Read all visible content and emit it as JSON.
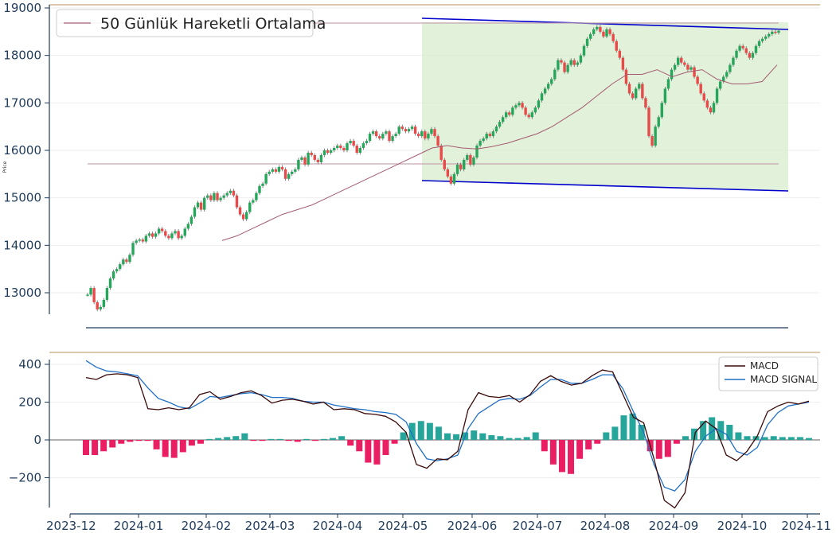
{
  "chart_data": [
    {
      "type": "candlestick",
      "ylabel": "Price",
      "ylim": [
        12500,
        19000
      ],
      "yticks": [
        "13000",
        "14000",
        "15000",
        "16000",
        "17000",
        "18000",
        "19000"
      ],
      "legend": {
        "entries": [
          "50 Günlük Hareketli Ortalama"
        ],
        "position": "top-left"
      },
      "colors": {
        "up": "#26a65b",
        "down": "#e84a4a",
        "ma": "#b07a8a",
        "channel": "#0000cc",
        "channel_fill": "#d8eccc",
        "reference": "#c9a67a"
      },
      "price_closes": [
        12960,
        13100,
        12800,
        12650,
        12700,
        12850,
        13100,
        13300,
        13450,
        13500,
        13600,
        13700,
        13650,
        13800,
        14050,
        14100,
        14120,
        14080,
        14200,
        14250,
        14180,
        14250,
        14350,
        14300,
        14200,
        14150,
        14250,
        14300,
        14150,
        14200,
        14350,
        14450,
        14600,
        14800,
        14900,
        14750,
        15000,
        15050,
        14950,
        15100,
        14950,
        15000,
        15050,
        15100,
        15150,
        15050,
        14800,
        14650,
        14550,
        14700,
        14900,
        14950,
        15100,
        15250,
        15300,
        15500,
        15550,
        15600,
        15550,
        15650,
        15600,
        15400,
        15500,
        15550,
        15600,
        15800,
        15850,
        15700,
        15950,
        15900,
        15800,
        15750,
        15900,
        16000,
        15950,
        16000,
        16050,
        16100,
        16050,
        16000,
        16150,
        16200,
        16100,
        15950,
        16050,
        16150,
        16200,
        16350,
        16400,
        16300,
        16250,
        16350,
        16400,
        16200,
        16300,
        16350,
        16500,
        16450,
        16400,
        16450,
        16500,
        16350,
        16300,
        16400,
        16250,
        16350,
        16450,
        16300,
        16100,
        15800,
        15600,
        15450,
        15300,
        15500,
        15700,
        15600,
        15800,
        15900,
        15700,
        15850,
        16100,
        16200,
        16250,
        16350,
        16300,
        16400,
        16500,
        16600,
        16700,
        16800,
        16750,
        16900,
        16950,
        17000,
        16900,
        16750,
        16700,
        16800,
        16900,
        17050,
        17200,
        17300,
        17400,
        17500,
        17700,
        17900,
        17850,
        17650,
        17800,
        17900,
        17800,
        17850,
        18000,
        18200,
        18350,
        18450,
        18550,
        18600,
        18500,
        18400,
        18550,
        18450,
        18300,
        18100,
        17950,
        17700,
        17400,
        17200,
        17100,
        17300,
        17400,
        17100,
        16900,
        16300,
        16100,
        16500,
        16700,
        17000,
        17300,
        17500,
        17700,
        17800,
        17950,
        17850,
        17800,
        17700,
        17750,
        17550,
        17400,
        17200,
        17050,
        16900,
        16800,
        17000,
        17300,
        17450,
        17550,
        17650,
        17800,
        17950,
        18100,
        18200,
        18150,
        18050,
        17950,
        18050,
        18200,
        18300,
        18350,
        18400,
        18450,
        18500,
        18480,
        18520
      ],
      "ma50": [
        14100,
        14200,
        14350,
        14500,
        14650,
        14750,
        14850,
        15000,
        15150,
        15300,
        15450,
        15600,
        15750,
        15900,
        16050,
        16100,
        16050,
        16030,
        16080,
        16150,
        16250,
        16350,
        16500,
        16700,
        16900,
        17150,
        17400,
        17600,
        17600,
        17700,
        17550,
        17650,
        17700,
        17500,
        17400,
        17400,
        17450,
        17800
      ],
      "panels": [
        {
          "name": "price",
          "ylabel": "Price",
          "yticks": [
            "13000",
            "14000",
            "15000",
            "16000",
            "17000",
            "18000",
            "19000"
          ]
        },
        {
          "name": "macd",
          "yticks": [
            "400",
            "200",
            "0",
            "−200"
          ]
        }
      ],
      "xticks": [
        "2023-12",
        "2024-01",
        "2024-02",
        "2024-03",
        "2024-04",
        "2024-05",
        "2024-06",
        "2024-07",
        "2024-08",
        "2024-09",
        "2024-10",
        "2024-11"
      ]
    },
    {
      "type": "line",
      "title": "",
      "ylim": [
        -370,
        430
      ],
      "legend": {
        "entries": [
          "MACD",
          "MACD SIGNAL"
        ],
        "position": "top-right"
      },
      "colors": {
        "macd": "#3b0a0a",
        "signal": "#1f6fc5",
        "hist_pos": "#26a69a",
        "hist_neg": "#e91e63",
        "zero": "#808080"
      },
      "series": [
        {
          "name": "MACD",
          "values": [
            330,
            320,
            345,
            350,
            345,
            330,
            165,
            160,
            170,
            160,
            170,
            240,
            255,
            215,
            230,
            250,
            260,
            235,
            195,
            210,
            215,
            205,
            190,
            200,
            160,
            165,
            160,
            140,
            135,
            125,
            95,
            40,
            -130,
            -150,
            -100,
            -105,
            -60,
            160,
            250,
            230,
            225,
            235,
            200,
            240,
            310,
            340,
            310,
            290,
            300,
            340,
            370,
            360,
            240,
            120,
            90,
            -100,
            -320,
            -360,
            -280,
            40,
            100,
            60,
            -80,
            -110,
            -60,
            20,
            150,
            180,
            200,
            190,
            205
          ]
        },
        {
          "name": "MACD SIGNAL",
          "values": [
            420,
            385,
            365,
            360,
            350,
            340,
            275,
            220,
            200,
            175,
            165,
            195,
            230,
            225,
            235,
            245,
            250,
            240,
            225,
            225,
            220,
            205,
            200,
            200,
            185,
            175,
            165,
            160,
            150,
            145,
            135,
            95,
            -20,
            -100,
            -110,
            -100,
            -80,
            60,
            140,
            175,
            210,
            220,
            215,
            235,
            280,
            320,
            320,
            300,
            300,
            320,
            345,
            345,
            270,
            150,
            40,
            -130,
            -250,
            -270,
            -210,
            -60,
            20,
            60,
            30,
            -60,
            -80,
            -40,
            80,
            145,
            180,
            190,
            200
          ]
        }
      ],
      "histogram": [
        -80,
        -80,
        -60,
        -40,
        -20,
        -10,
        -5,
        -5,
        -50,
        -90,
        -95,
        -65,
        -30,
        -20,
        5,
        10,
        15,
        20,
        35,
        -5,
        -5,
        5,
        5,
        -5,
        -10,
        5,
        -5,
        5,
        10,
        20,
        -30,
        -60,
        -120,
        -130,
        -80,
        -20,
        40,
        90,
        100,
        90,
        70,
        35,
        30,
        40,
        50,
        35,
        25,
        20,
        10,
        10,
        15,
        40,
        -60,
        -130,
        -170,
        -180,
        -100,
        -50,
        -20,
        40,
        70,
        130,
        140,
        80,
        -60,
        -100,
        -90,
        -20,
        20,
        60,
        100,
        120,
        100,
        80,
        40,
        20,
        20,
        15,
        20,
        15,
        15,
        15,
        10
      ]
    }
  ]
}
